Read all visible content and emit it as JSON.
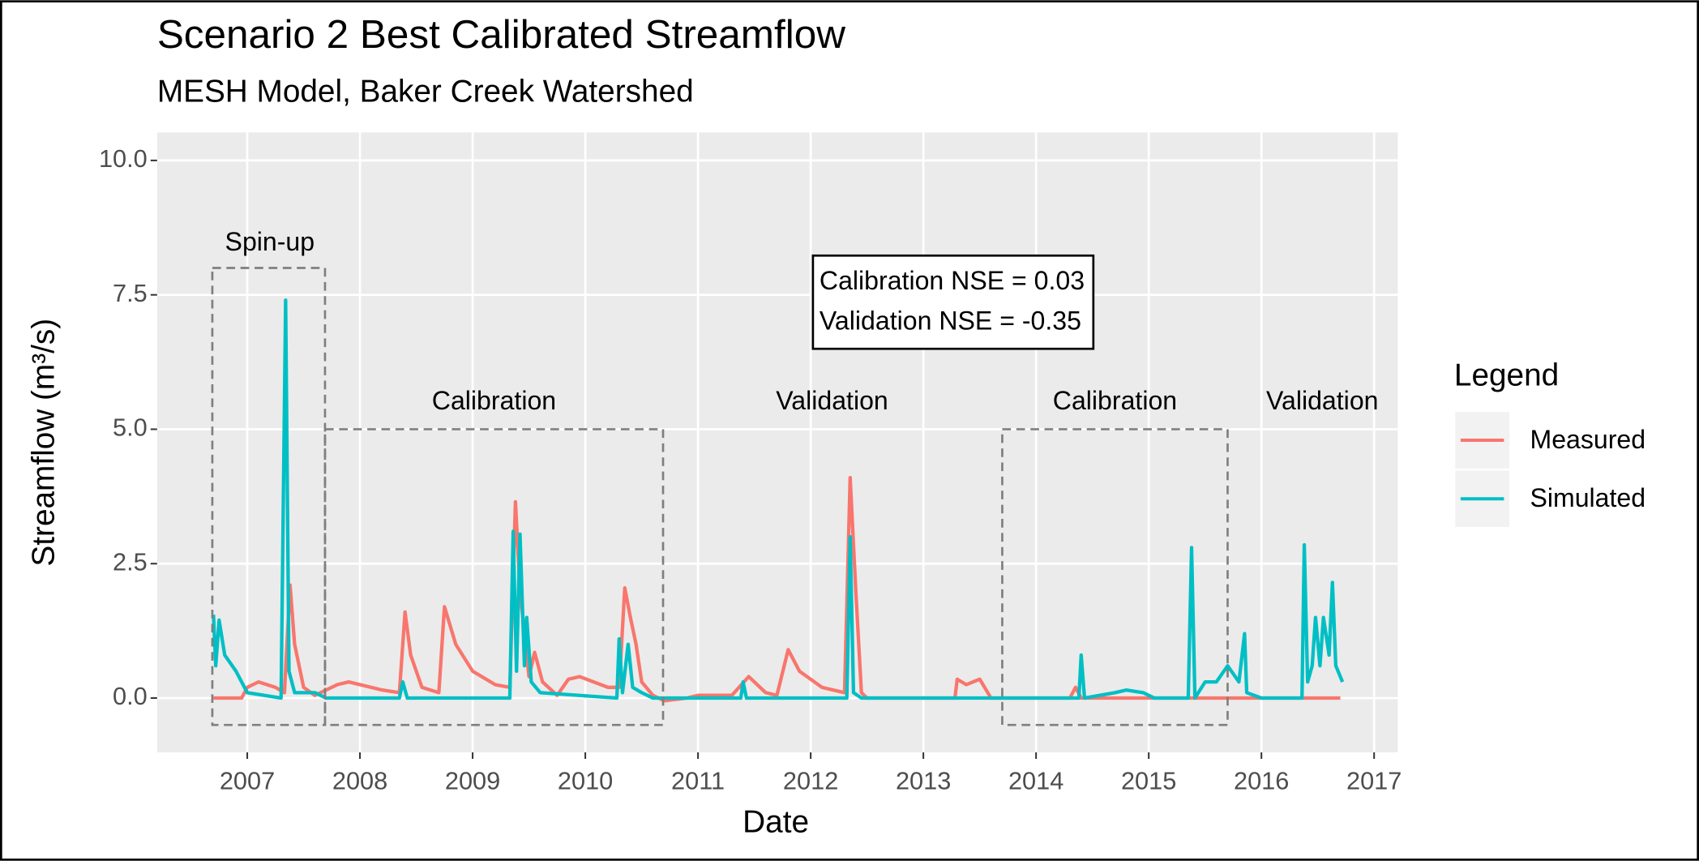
{
  "chart_data": {
    "type": "line",
    "title": "Scenario 2 Best Calibrated Streamflow",
    "subtitle": "MESH Model, Baker Creek Watershed",
    "x_label": "Date",
    "y_label": "Streamflow (m³/s)",
    "xlim": [
      2006.2,
      2017.21
    ],
    "xticks": [
      2007,
      2008,
      2009,
      2010,
      2011,
      2012,
      2013,
      2014,
      2015,
      2016,
      2017
    ],
    "ylim": [
      -1.01,
      10.52
    ],
    "yticks": [
      {
        "value": 0,
        "label": "0.0"
      },
      {
        "value": 2.5,
        "label": "2.5"
      },
      {
        "value": 5,
        "label": "5.0"
      },
      {
        "value": 7.5,
        "label": "7.5"
      },
      {
        "value": 10,
        "label": "10.0"
      }
    ],
    "grid": true,
    "legend_title": "Legend",
    "legend_position": "right",
    "series": [
      {
        "name": "Measured",
        "color": "#F8766D",
        "x": [
          2006.7,
          2006.95,
          2007.0,
          2007.1,
          2007.25,
          2007.33,
          2007.38,
          2007.42,
          2007.5,
          2007.6,
          2007.8,
          2007.9,
          2008.2,
          2008.35,
          2008.4,
          2008.45,
          2008.55,
          2008.7,
          2008.75,
          2008.85,
          2009.0,
          2009.2,
          2009.33,
          2009.38,
          2009.42,
          2009.5,
          2009.55,
          2009.62,
          2009.75,
          2009.85,
          2009.95,
          2010.2,
          2010.3,
          2010.35,
          2010.4,
          2010.45,
          2010.5,
          2010.6,
          2010.7,
          2010.9,
          2011.0,
          2011.3,
          2011.45,
          2011.6,
          2011.7,
          2011.8,
          2011.9,
          2012.1,
          2012.3,
          2012.35,
          2012.4,
          2012.45,
          2012.5,
          2013.28,
          2013.3,
          2013.38,
          2013.5,
          2013.6,
          2014.3,
          2014.35,
          2014.4,
          2016.7
        ],
        "values": [
          0,
          0,
          0.2,
          0.3,
          0.2,
          0.1,
          2.1,
          1.0,
          0.2,
          0.05,
          0.25,
          0.3,
          0.15,
          0.1,
          1.6,
          0.8,
          0.2,
          0.1,
          1.7,
          1.0,
          0.5,
          0.25,
          0.2,
          3.65,
          2.0,
          0.4,
          0.85,
          0.3,
          0.05,
          0.35,
          0.4,
          0.2,
          0.2,
          2.05,
          1.5,
          1.0,
          0.3,
          0.05,
          -0.05,
          0,
          0.05,
          0.05,
          0.4,
          0.1,
          0.05,
          0.9,
          0.5,
          0.2,
          0.1,
          4.1,
          2.0,
          0.1,
          0,
          0,
          0.35,
          0.25,
          0.35,
          0,
          0,
          0.2,
          0,
          0
        ]
      },
      {
        "name": "Simulated",
        "color": "#00BFC4",
        "x": [
          2006.7,
          2006.72,
          2006.75,
          2006.8,
          2006.9,
          2007.0,
          2007.3,
          2007.34,
          2007.37,
          2007.42,
          2007.6,
          2007.7,
          2008.35,
          2008.38,
          2008.42,
          2009.33,
          2009.36,
          2009.39,
          2009.42,
          2009.46,
          2009.48,
          2009.52,
          2009.6,
          2010.28,
          2010.3,
          2010.33,
          2010.38,
          2010.42,
          2010.5,
          2010.6,
          2011.38,
          2011.4,
          2011.43,
          2012.32,
          2012.35,
          2012.38,
          2012.45,
          2014.38,
          2014.4,
          2014.43,
          2014.7,
          2014.8,
          2014.95,
          2015.05,
          2015.35,
          2015.38,
          2015.41,
          2015.5,
          2015.6,
          2015.7,
          2015.8,
          2015.85,
          2015.87,
          2016.0,
          2016.36,
          2016.38,
          2016.41,
          2016.45,
          2016.48,
          2016.52,
          2016.55,
          2016.6,
          2016.63,
          2016.66,
          2016.72
        ],
        "values": [
          1.55,
          0.6,
          1.45,
          0.8,
          0.5,
          0.1,
          0,
          7.4,
          0.5,
          0.1,
          0.1,
          0,
          0,
          0.3,
          0,
          0,
          3.1,
          0.5,
          3.05,
          0.6,
          1.5,
          0.3,
          0.1,
          0,
          1.1,
          0.1,
          1.0,
          0.2,
          0.1,
          0,
          0,
          0.3,
          0,
          0,
          3.0,
          0.1,
          0,
          0,
          0.8,
          0,
          0.1,
          0.15,
          0.1,
          0,
          0,
          2.8,
          0,
          0.3,
          0.3,
          0.6,
          0.3,
          1.2,
          0.1,
          0,
          0,
          2.85,
          0.3,
          0.6,
          1.5,
          0.6,
          1.5,
          0.8,
          2.15,
          0.6,
          0.3
        ]
      }
    ],
    "regions": [
      {
        "label": "Spin-up",
        "x0": 2006.69,
        "x1": 2007.69,
        "y0": -0.5,
        "y1": 8.0,
        "label_x": 2007.2,
        "label_y": 8.45
      },
      {
        "label": "Calibration",
        "x0": 2007.69,
        "x1": 2010.69,
        "y0": -0.5,
        "y1": 5.0,
        "label_x": 2009.19,
        "label_y": 5.5
      },
      {
        "label": "Calibration",
        "x0": 2013.7,
        "x1": 2015.7,
        "y0": -0.5,
        "y1": 5.0,
        "label_x": 2014.7,
        "label_y": 5.5
      }
    ],
    "annotations": [
      {
        "text": "Validation",
        "x": 2012.19,
        "y": 5.5
      },
      {
        "text": "Validation",
        "x": 2016.54,
        "y": 5.5
      }
    ],
    "nse_box": {
      "x": 2012.02,
      "y": 8.23,
      "lines": [
        "Calibration NSE = 0.03",
        "Validation NSE = -0.35"
      ]
    }
  }
}
